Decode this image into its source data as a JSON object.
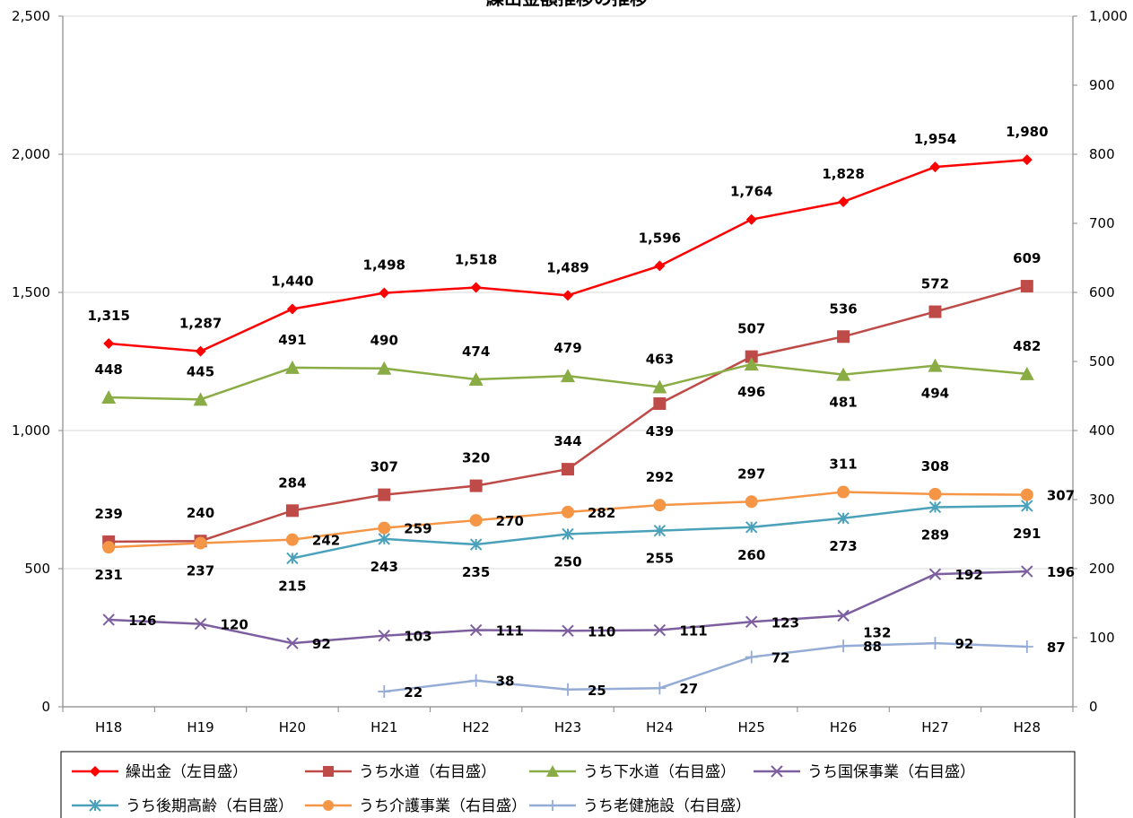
{
  "chart_data": {
    "type": "line",
    "title": "繰出金額推移の推移",
    "categories": [
      "H18",
      "H19",
      "H20",
      "H21",
      "H22",
      "H23",
      "H24",
      "H25",
      "H26",
      "H27",
      "H28"
    ],
    "y_left": {
      "min": 0,
      "max": 2500,
      "ticks": [
        "0",
        "500",
        "1,000",
        "1,500",
        "2,000",
        "2,500"
      ]
    },
    "y_right": {
      "min": 0,
      "max": 1000,
      "ticks": [
        "0",
        "100",
        "200",
        "300",
        "400",
        "500",
        "600",
        "700",
        "800",
        "900",
        "1,000"
      ]
    },
    "grid": true,
    "legend_position": "bottom",
    "series": [
      {
        "name": "繰出金（左目盛）",
        "axis": "left",
        "color": "#ff0000",
        "marker": "diamond",
        "values": [
          1315,
          1287,
          1440,
          1498,
          1518,
          1489,
          1596,
          1764,
          1828,
          1954,
          1980
        ],
        "labels": [
          "1,315",
          "1,287",
          "1,440",
          "1,498",
          "1,518",
          "1,489",
          "1,596",
          "1,764",
          "1,828",
          "1,954",
          "1,980"
        ],
        "label_pos": "above"
      },
      {
        "name": "うち水道（右目盛）",
        "axis": "right",
        "color": "#be4b48",
        "marker": "square",
        "values": [
          239,
          240,
          284,
          307,
          320,
          344,
          439,
          507,
          536,
          572,
          609
        ],
        "labels": [
          "239",
          "240",
          "284",
          "307",
          "320",
          "344",
          "439",
          "507",
          "536",
          "572",
          "609"
        ],
        "label_pos": [
          "above",
          "above",
          "above",
          "above",
          "above",
          "above",
          "below",
          "above",
          "above",
          "above",
          "above"
        ]
      },
      {
        "name": "うち下水道（右目盛）",
        "axis": "right",
        "color": "#8aac45",
        "marker": "triangle",
        "values": [
          448,
          445,
          491,
          490,
          474,
          479,
          463,
          496,
          481,
          494,
          482
        ],
        "labels": [
          "448",
          "445",
          "491",
          "490",
          "474",
          "479",
          "463",
          "496",
          "481",
          "494",
          "482"
        ],
        "label_pos": [
          "above",
          "above",
          "above",
          "above",
          "above",
          "above",
          "above",
          "below",
          "below",
          "below",
          "above"
        ]
      },
      {
        "name": "うち国保事業（右目盛）",
        "axis": "right",
        "color": "#7d5fa0",
        "marker": "x",
        "values": [
          126,
          120,
          92,
          103,
          111,
          110,
          111,
          123,
          132,
          192,
          196
        ],
        "labels": [
          "126",
          "120",
          "92",
          "103",
          "111",
          "110",
          "111",
          "123",
          "132",
          "192",
          "196"
        ],
        "label_pos": [
          "right",
          "right",
          "right",
          "right",
          "right",
          "right",
          "right",
          "right",
          "belowright",
          "right",
          "right"
        ]
      },
      {
        "name": "うち後期高齢（右目盛）",
        "axis": "right",
        "color": "#4aa1b9",
        "marker": "star",
        "values": [
          null,
          null,
          215,
          243,
          235,
          250,
          255,
          260,
          273,
          289,
          291
        ],
        "labels": [
          "",
          "",
          "215",
          "243",
          "235",
          "250",
          "255",
          "260",
          "273",
          "289",
          "291"
        ],
        "label_pos": "below"
      },
      {
        "name": "うち介護事業（右目盛）",
        "axis": "right",
        "color": "#f59647",
        "marker": "circle",
        "values": [
          231,
          237,
          242,
          259,
          270,
          282,
          292,
          297,
          311,
          308,
          307
        ],
        "labels": [
          "231",
          "237",
          "242",
          "259",
          "270",
          "282",
          "292",
          "297",
          "311",
          "308",
          "307"
        ],
        "label_pos": [
          "below",
          "below",
          "right",
          "right",
          "right",
          "right",
          "above",
          "above",
          "above",
          "above",
          "right"
        ]
      },
      {
        "name": "うち老健施設（右目盛）",
        "axis": "right",
        "color": "#94acd6",
        "marker": "plus",
        "values": [
          null,
          null,
          null,
          22,
          38,
          25,
          27,
          72,
          88,
          92,
          87
        ],
        "labels": [
          "",
          "",
          "",
          "22",
          "38",
          "25",
          "27",
          "72",
          "88",
          "92",
          "87"
        ],
        "label_pos": "right"
      }
    ]
  }
}
